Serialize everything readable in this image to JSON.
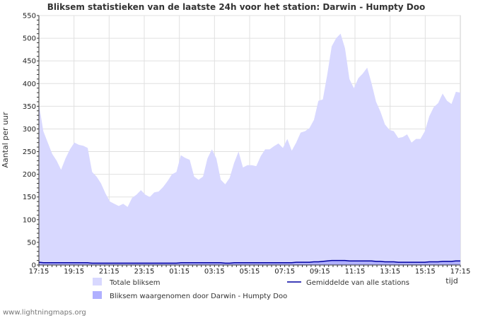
{
  "chart_data": {
    "type": "area",
    "title": "Bliksem statistieken van de laatste 24h voor het station: Darwin - Humpty Doo",
    "ylabel": "Aantal per uur",
    "xlabel": "tijd",
    "ylim": [
      0,
      550
    ],
    "yticks": [
      0,
      50,
      100,
      150,
      200,
      250,
      300,
      350,
      400,
      450,
      500,
      550
    ],
    "xticks": [
      "17:15",
      "19:15",
      "21:15",
      "23:15",
      "01:15",
      "03:15",
      "05:15",
      "07:15",
      "09:15",
      "11:15",
      "13:15",
      "15:15",
      "17:15"
    ],
    "series": [
      {
        "name": "Totale bliksem",
        "color": "#d8d8ff",
        "values": [
          355,
          295,
          270,
          245,
          230,
          210,
          235,
          255,
          270,
          265,
          263,
          258,
          205,
          195,
          180,
          158,
          140,
          135,
          130,
          135,
          128,
          148,
          155,
          165,
          155,
          150,
          160,
          162,
          172,
          185,
          200,
          205,
          242,
          236,
          232,
          195,
          188,
          195,
          235,
          255,
          235,
          188,
          178,
          192,
          225,
          250,
          215,
          220,
          220,
          218,
          240,
          255,
          255,
          262,
          268,
          258,
          278,
          252,
          270,
          292,
          295,
          302,
          320,
          362,
          365,
          420,
          482,
          500,
          510,
          478,
          410,
          390,
          412,
          422,
          435,
          400,
          360,
          338,
          310,
          298,
          295,
          280,
          282,
          288,
          270,
          278,
          278,
          295,
          328,
          348,
          357,
          378,
          362,
          355,
          382,
          380
        ]
      },
      {
        "name": "Bliksem waargenomen door Darwin - Humpty Doo",
        "color": "#b0b0ff",
        "values": [
          5,
          5,
          5,
          5,
          5,
          4,
          5,
          5,
          5,
          5,
          5,
          5,
          4,
          4,
          4,
          4,
          3,
          3,
          3,
          3,
          3,
          3,
          4,
          4,
          4,
          4,
          4,
          4,
          4,
          4,
          4,
          4,
          5,
          5,
          5,
          4,
          4,
          4,
          5,
          5,
          5,
          4,
          4,
          4,
          5,
          5,
          4,
          4,
          4,
          4,
          5,
          5,
          5,
          5,
          5,
          5,
          5,
          5,
          5,
          6,
          6,
          6,
          6,
          7,
          7,
          8,
          9,
          10,
          10,
          10,
          9,
          8,
          9,
          9,
          9,
          9,
          8,
          7,
          7,
          6,
          6,
          6,
          6,
          6,
          6,
          6,
          6,
          6,
          7,
          7,
          7,
          8,
          8,
          7,
          8,
          8
        ]
      },
      {
        "name": "Gemiddelde van alle stations",
        "color": "#0000a0",
        "values": [
          6,
          5,
          5,
          5,
          5,
          5,
          5,
          5,
          5,
          5,
          5,
          5,
          4,
          4,
          4,
          4,
          4,
          4,
          4,
          4,
          4,
          4,
          4,
          4,
          4,
          4,
          4,
          4,
          4,
          4,
          4,
          4,
          5,
          5,
          5,
          5,
          5,
          5,
          5,
          5,
          5,
          5,
          4,
          4,
          5,
          5,
          5,
          5,
          5,
          5,
          5,
          5,
          5,
          5,
          5,
          5,
          5,
          5,
          6,
          6,
          6,
          6,
          7,
          7,
          8,
          9,
          10,
          10,
          10,
          10,
          9,
          9,
          9,
          9,
          9,
          9,
          8,
          8,
          7,
          7,
          7,
          6,
          6,
          6,
          6,
          6,
          6,
          6,
          7,
          7,
          7,
          8,
          8,
          8,
          9,
          9
        ]
      }
    ]
  },
  "legend": {
    "total": "Totale bliksem",
    "station": "Bliksem waargenomen door Darwin - Humpty Doo",
    "average": "Gemiddelde van alle stations"
  },
  "footer": "www.lightningmaps.org"
}
